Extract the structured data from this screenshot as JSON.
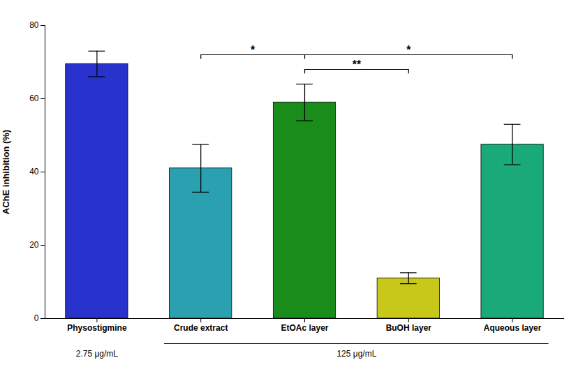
{
  "chart_data": {
    "type": "bar",
    "categories": [
      "Physostigmine",
      "Crude extract",
      "EtOAc layer",
      "BuOH layer",
      "Aqueous layer"
    ],
    "values": [
      69.5,
      41.0,
      59.0,
      11.0,
      47.5
    ],
    "errors": [
      3.5,
      6.5,
      5.0,
      1.5,
      5.5
    ],
    "colors": [
      "#2832cc",
      "#2aa0b0",
      "#1a8c1a",
      "#c8c81a",
      "#1aaa7a"
    ],
    "ylabel": "AChE inhibition (%)",
    "ylim": [
      0,
      80
    ],
    "yticks": [
      0,
      20,
      40,
      60,
      80
    ],
    "grid": false,
    "annotations": [
      {
        "between": [
          "Crude extract",
          "EtOAc layer",
          "Aqueous layer"
        ],
        "labels": [
          "*",
          "*"
        ]
      },
      {
        "between": [
          "EtOAc layer",
          "BuOH layer"
        ],
        "labels": [
          "**"
        ]
      }
    ],
    "x_group_labels": [
      {
        "label": "2.75 μg/mL",
        "categories": [
          "Physostigmine"
        ]
      },
      {
        "label": "125 μg/mL",
        "categories": [
          "Crude extract",
          "EtOAc layer",
          "BuOH layer",
          "Aqueous layer"
        ]
      }
    ]
  }
}
